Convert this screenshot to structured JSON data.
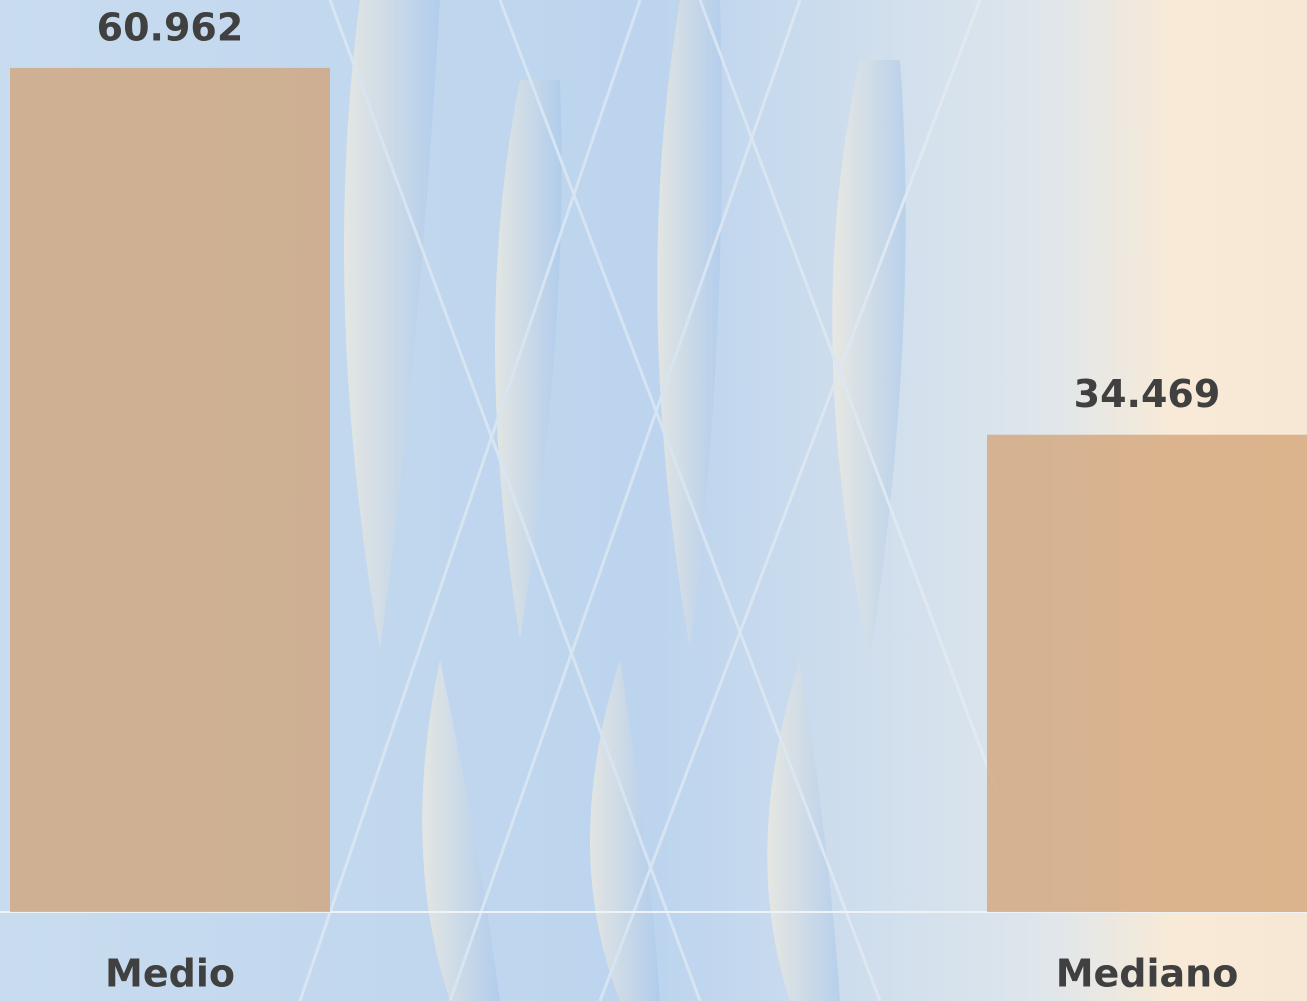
{
  "chart_data": {
    "type": "bar",
    "categories": [
      "Medio",
      "Mediano"
    ],
    "values": [
      60.962,
      34.469
    ],
    "color": "#d2a274",
    "ylim": [
      0,
      65
    ]
  }
}
